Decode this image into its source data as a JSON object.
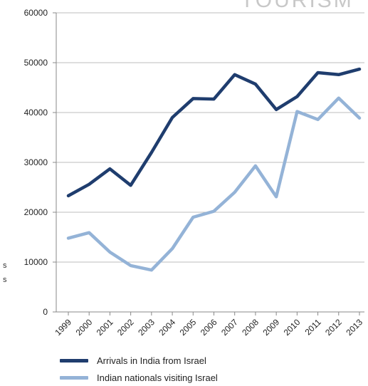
{
  "watermark": "TOURISM",
  "left_fragments": [
    "s",
    "s"
  ],
  "chart_data": {
    "type": "line",
    "x": [
      "1999",
      "2000",
      "2001",
      "2002",
      "2003",
      "2004",
      "2005",
      "2006",
      "2007",
      "2008",
      "2009",
      "2010",
      "2011",
      "2012",
      "2013"
    ],
    "ylim": [
      0,
      60000
    ],
    "yticks": [
      0,
      10000,
      20000,
      30000,
      40000,
      50000,
      60000
    ],
    "grid": true,
    "legend_position": "bottom",
    "series": [
      {
        "name": "Arrivals in India from Israel",
        "color": "#1f3d6e",
        "values": [
          23300,
          25600,
          28700,
          25400,
          32000,
          39000,
          42800,
          42700,
          47600,
          45700,
          40600,
          43200,
          48000,
          47600,
          48700
        ]
      },
      {
        "name": "Indian nationals visiting Israel",
        "color": "#94b3d7",
        "values": [
          14800,
          15900,
          12000,
          9300,
          8400,
          12700,
          19000,
          20200,
          24000,
          29300,
          23100,
          40200,
          38600,
          42900,
          38900
        ]
      }
    ]
  }
}
